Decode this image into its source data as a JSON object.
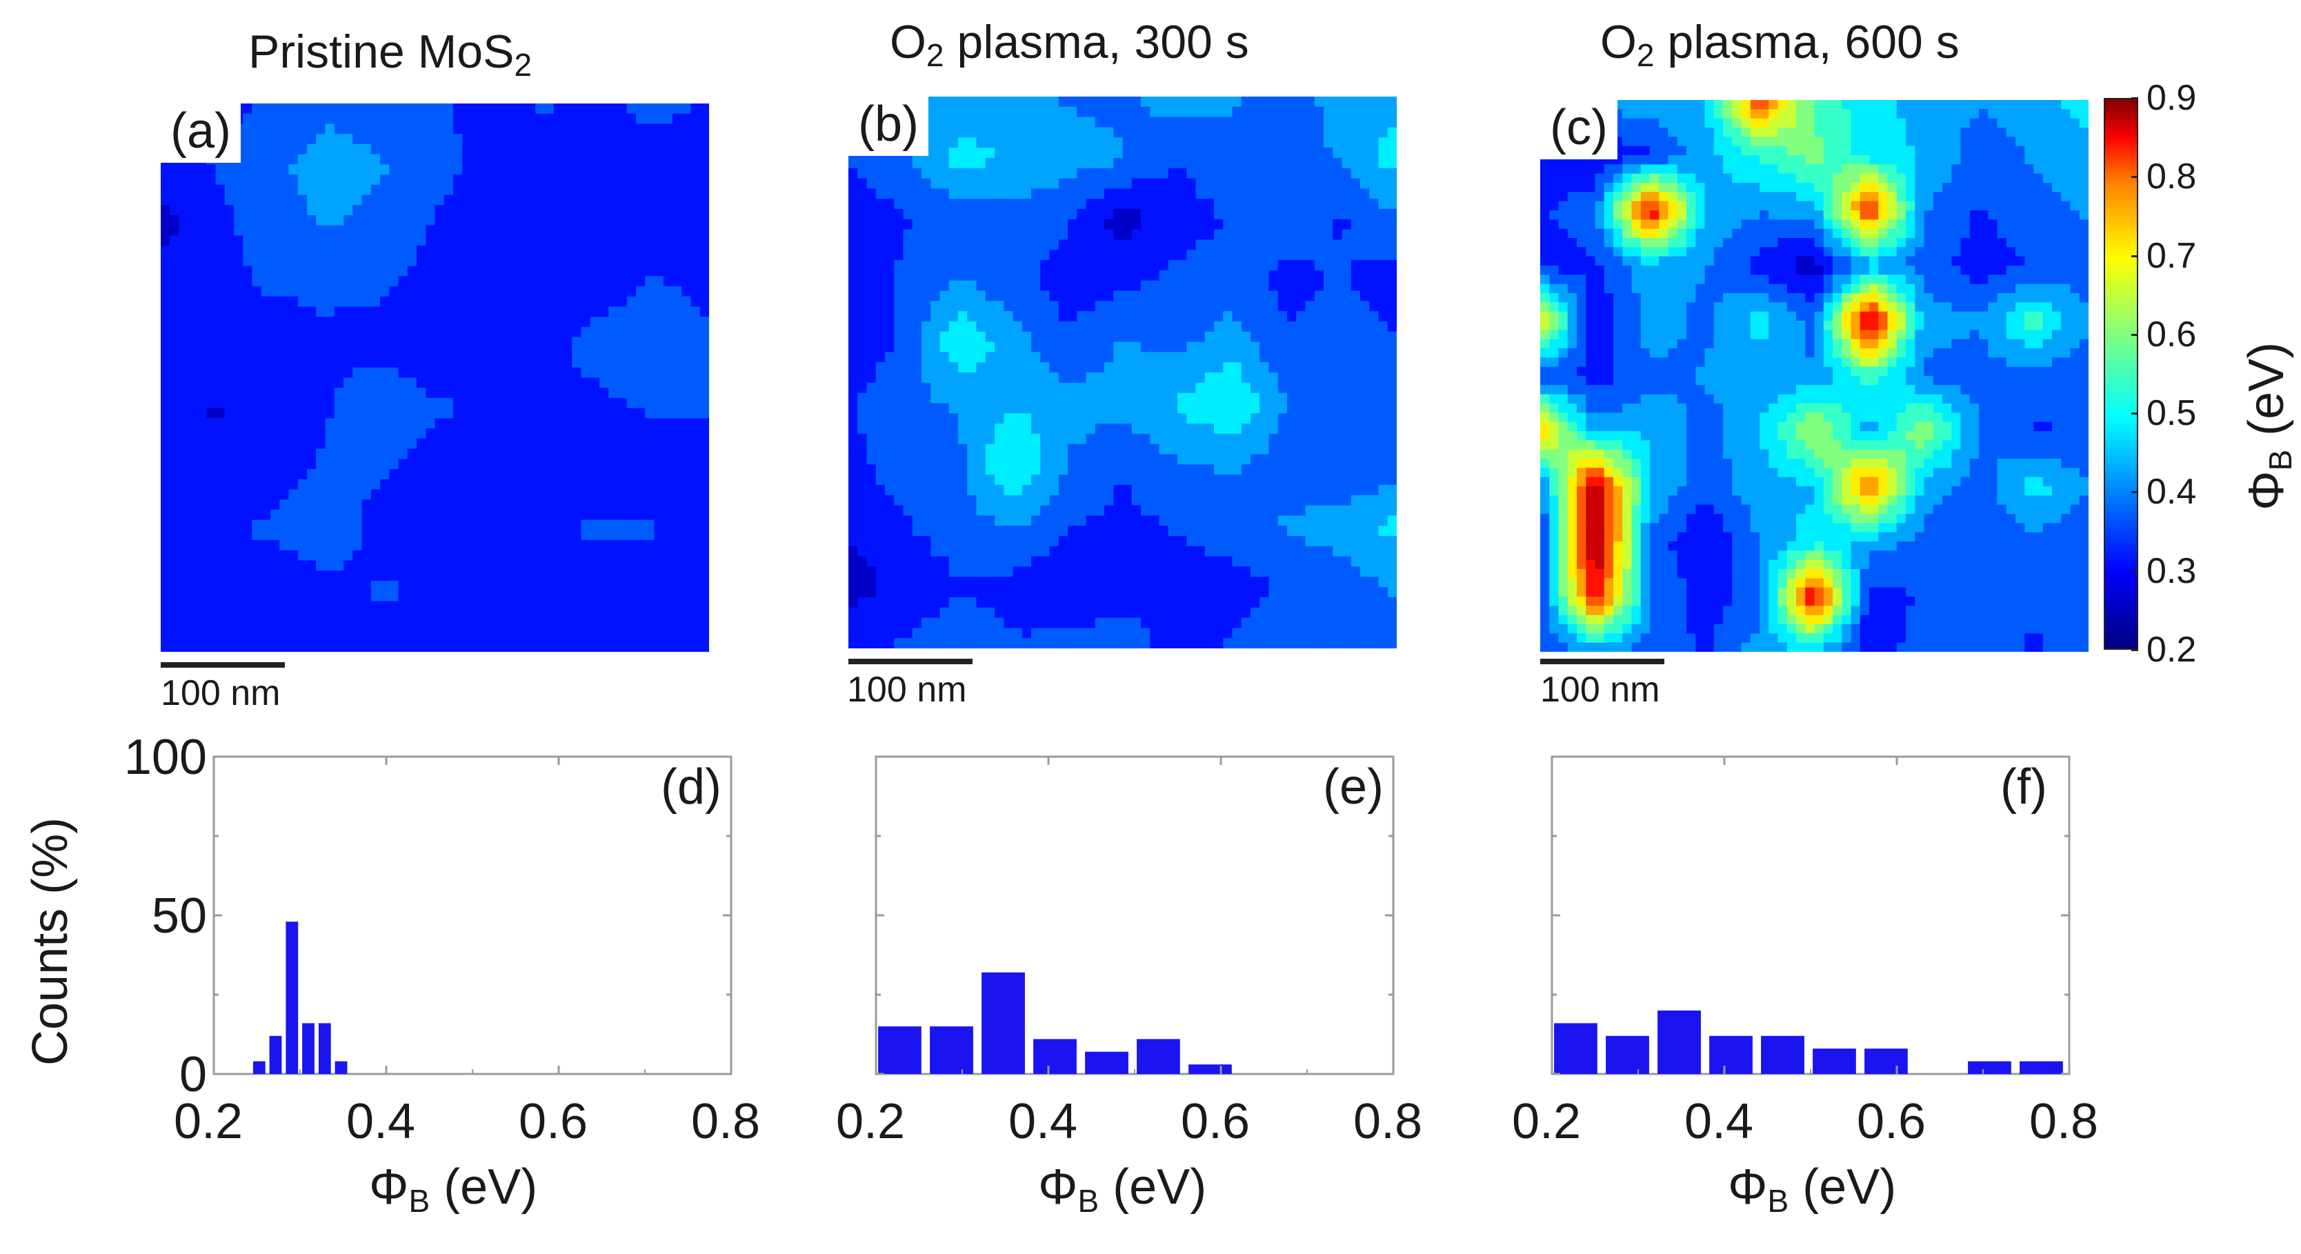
{
  "figure": {
    "panel_titles": [
      {
        "main": "Pristine MoS",
        "sub": "2",
        "tail": ""
      },
      {
        "main": "O",
        "sub": "2",
        "tail": " plasma, 300 s"
      },
      {
        "main": "O",
        "sub": "2",
        "tail": " plasma, 600 s"
      }
    ],
    "map_labels": [
      "(a)",
      "(b)",
      "(c)"
    ],
    "hist_labels": [
      "(d)",
      "(e)",
      "(f)"
    ],
    "scale_bar": "100 nm",
    "colorbar": {
      "title_symbol": "Φ",
      "title_sub": "B",
      "title_tail": " (eV)",
      "ticks": [
        "0.9",
        "0.8",
        "0.7",
        "0.6",
        "0.5",
        "0.4",
        "0.3",
        "0.2"
      ]
    },
    "hist_xlabel": {
      "symbol": "Φ",
      "sub": "B",
      "tail": " (eV)"
    },
    "hist_ylabel": "Counts (%)",
    "colors": {
      "bar": "#1a14f0",
      "axis": "#9a9a9a",
      "text": "#1a1a1a"
    }
  },
  "chart_data": [
    {
      "type": "heatmap",
      "title": "Pristine MoS2",
      "label": "(a)",
      "colorbar_label": "ΦB (eV)",
      "zlim": [
        0.2,
        0.9
      ],
      "grid": [
        [
          0.3,
          0.31,
          0.33,
          0.36,
          0.35,
          0.33,
          0.31,
          0.33,
          0.31,
          0.34,
          0.32
        ],
        [
          0.29,
          0.33,
          0.36,
          0.4,
          0.38,
          0.34,
          0.31,
          0.3,
          0.32,
          0.3,
          0.31
        ],
        [
          0.26,
          0.31,
          0.35,
          0.38,
          0.36,
          0.32,
          0.3,
          0.31,
          0.3,
          0.31,
          0.3
        ],
        [
          0.29,
          0.31,
          0.33,
          0.33,
          0.33,
          0.31,
          0.29,
          0.3,
          0.3,
          0.33,
          0.31
        ],
        [
          0.31,
          0.32,
          0.3,
          0.32,
          0.31,
          0.3,
          0.3,
          0.31,
          0.35,
          0.38,
          0.34
        ],
        [
          0.29,
          0.27,
          0.29,
          0.32,
          0.36,
          0.33,
          0.32,
          0.3,
          0.31,
          0.33,
          0.33
        ],
        [
          0.31,
          0.3,
          0.31,
          0.33,
          0.33,
          0.31,
          0.3,
          0.29,
          0.3,
          0.3,
          0.31
        ],
        [
          0.32,
          0.32,
          0.33,
          0.35,
          0.31,
          0.3,
          0.31,
          0.32,
          0.33,
          0.33,
          0.29
        ],
        [
          0.3,
          0.31,
          0.3,
          0.31,
          0.33,
          0.32,
          0.3,
          0.31,
          0.31,
          0.3,
          0.3
        ],
        [
          0.31,
          0.3,
          0.32,
          0.3,
          0.31,
          0.3,
          0.32,
          0.3,
          0.32,
          0.31,
          0.31
        ]
      ]
    },
    {
      "type": "heatmap",
      "title": "O2 plasma, 300 s",
      "label": "(b)",
      "colorbar_label": "ΦB (eV)",
      "zlim": [
        0.2,
        0.9
      ],
      "grid": [
        [
          0.35,
          0.38,
          0.4,
          0.38,
          0.37,
          0.36,
          0.4,
          0.38,
          0.36,
          0.39,
          0.41
        ],
        [
          0.33,
          0.36,
          0.44,
          0.42,
          0.4,
          0.38,
          0.33,
          0.36,
          0.35,
          0.38,
          0.45
        ],
        [
          0.3,
          0.32,
          0.35,
          0.36,
          0.33,
          0.25,
          0.3,
          0.33,
          0.36,
          0.32,
          0.37
        ],
        [
          0.31,
          0.33,
          0.38,
          0.34,
          0.3,
          0.31,
          0.34,
          0.35,
          0.31,
          0.33,
          0.3
        ],
        [
          0.29,
          0.33,
          0.47,
          0.4,
          0.33,
          0.38,
          0.36,
          0.4,
          0.33,
          0.35,
          0.33
        ],
        [
          0.32,
          0.36,
          0.38,
          0.42,
          0.4,
          0.39,
          0.43,
          0.48,
          0.37,
          0.36,
          0.34
        ],
        [
          0.31,
          0.35,
          0.36,
          0.49,
          0.37,
          0.33,
          0.37,
          0.38,
          0.35,
          0.32,
          0.35
        ],
        [
          0.28,
          0.32,
          0.35,
          0.38,
          0.33,
          0.31,
          0.33,
          0.36,
          0.38,
          0.4,
          0.44
        ],
        [
          0.25,
          0.29,
          0.32,
          0.31,
          0.28,
          0.3,
          0.29,
          0.3,
          0.33,
          0.35,
          0.38
        ],
        [
          0.32,
          0.33,
          0.36,
          0.33,
          0.34,
          0.36,
          0.3,
          0.33,
          0.37,
          0.34,
          0.36
        ]
      ]
    },
    {
      "type": "heatmap",
      "title": "O2 plasma, 600 s",
      "label": "(c)",
      "colorbar_label": "ΦB (eV)",
      "zlim": [
        0.2,
        0.9
      ],
      "grid": [
        [
          0.38,
          0.4,
          0.4,
          0.42,
          0.78,
          0.5,
          0.45,
          0.4,
          0.38,
          0.4,
          0.45
        ],
        [
          0.3,
          0.28,
          0.32,
          0.4,
          0.48,
          0.55,
          0.45,
          0.42,
          0.35,
          0.38,
          0.4
        ],
        [
          0.32,
          0.35,
          0.85,
          0.42,
          0.38,
          0.4,
          0.8,
          0.38,
          0.32,
          0.36,
          0.38
        ],
        [
          0.3,
          0.32,
          0.4,
          0.38,
          0.3,
          0.25,
          0.4,
          0.35,
          0.3,
          0.33,
          0.35
        ],
        [
          0.65,
          0.28,
          0.4,
          0.36,
          0.45,
          0.35,
          0.88,
          0.4,
          0.38,
          0.5,
          0.38
        ],
        [
          0.35,
          0.3,
          0.36,
          0.38,
          0.4,
          0.38,
          0.5,
          0.36,
          0.35,
          0.35,
          0.33
        ],
        [
          0.68,
          0.4,
          0.42,
          0.35,
          0.42,
          0.6,
          0.4,
          0.58,
          0.38,
          0.32,
          0.33
        ],
        [
          0.35,
          0.88,
          0.42,
          0.35,
          0.4,
          0.42,
          0.78,
          0.4,
          0.35,
          0.45,
          0.38
        ],
        [
          0.3,
          0.9,
          0.36,
          0.27,
          0.38,
          0.45,
          0.4,
          0.36,
          0.33,
          0.36,
          0.33
        ],
        [
          0.32,
          0.82,
          0.38,
          0.3,
          0.35,
          0.85,
          0.3,
          0.33,
          0.36,
          0.33,
          0.34
        ],
        [
          0.33,
          0.38,
          0.35,
          0.32,
          0.4,
          0.42,
          0.28,
          0.36,
          0.34,
          0.32,
          0.35
        ]
      ]
    },
    {
      "type": "bar",
      "label": "(d)",
      "xlabel": "ΦB (eV)",
      "ylabel": "Counts (%)",
      "xlim": [
        0.2,
        0.8
      ],
      "ylim": [
        0,
        100
      ],
      "xticks": [
        "0.2",
        "0.4",
        "0.6",
        "0.8"
      ],
      "yticks": [
        "0",
        "50",
        "100"
      ],
      "bar_width": 0.019,
      "x": [
        0.255,
        0.274,
        0.293,
        0.312,
        0.331,
        0.35
      ],
      "values": [
        4,
        12,
        48,
        16,
        16,
        4
      ]
    },
    {
      "type": "bar",
      "label": "(e)",
      "xlabel": "ΦB (eV)",
      "ylabel": "",
      "xlim": [
        0.2,
        0.8
      ],
      "ylim": [
        0,
        100
      ],
      "xticks": [
        "0.2",
        "0.4",
        "0.6",
        "0.8"
      ],
      "bar_width": 0.055,
      "x": [
        0.23,
        0.29,
        0.35,
        0.41,
        0.47,
        0.53,
        0.59
      ],
      "values": [
        15,
        15,
        32,
        11,
        7,
        11,
        3
      ]
    },
    {
      "type": "bar",
      "label": "(f)",
      "xlabel": "ΦB (eV)",
      "ylabel": "",
      "xlim": [
        0.2,
        0.8
      ],
      "ylim": [
        0,
        100
      ],
      "xticks": [
        "0.2",
        "0.4",
        "0.6",
        "0.8"
      ],
      "bar_width": 0.055,
      "x": [
        0.23,
        0.29,
        0.35,
        0.41,
        0.47,
        0.53,
        0.59,
        0.65,
        0.71,
        0.77
      ],
      "values": [
        16,
        12,
        20,
        12,
        12,
        8,
        8,
        0,
        4,
        4
      ]
    }
  ]
}
